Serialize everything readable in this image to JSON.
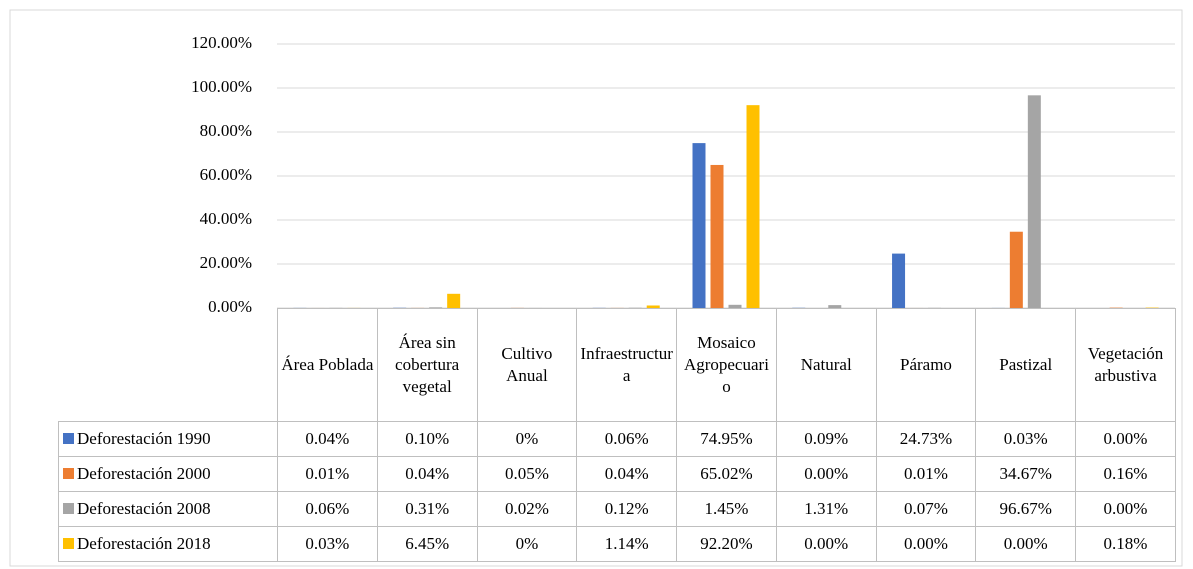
{
  "chart_data": {
    "type": "bar",
    "categories": [
      "Área Poblada",
      "Área sin cobertura vegetal",
      "Cultivo Anual",
      "Infraestructura",
      "Mosaico Agropecuario",
      "Natural",
      "Páramo",
      "Pastizal",
      "Vegetación arbustiva"
    ],
    "series": [
      {
        "name": "Deforestación 1990",
        "color": "#4472c4",
        "values": [
          0.04,
          0.1,
          0,
          0.06,
          74.95,
          0.09,
          24.73,
          0.03,
          0.0
        ],
        "value_labels": [
          "0.04%",
          "0.10%",
          "0%",
          "0.06%",
          "74.95%",
          "0.09%",
          "24.73%",
          "0.03%",
          "0.00%"
        ]
      },
      {
        "name": "Deforestación 2000",
        "color": "#ed7d31",
        "values": [
          0.01,
          0.04,
          0.05,
          0.04,
          65.02,
          0.0,
          0.01,
          34.67,
          0.16
        ],
        "value_labels": [
          "0.01%",
          "0.04%",
          "0.05%",
          "0.04%",
          "65.02%",
          "0.00%",
          "0.01%",
          "34.67%",
          "0.16%"
        ]
      },
      {
        "name": "Deforestación 2008",
        "color": "#a5a5a5",
        "values": [
          0.06,
          0.31,
          0.02,
          0.12,
          1.45,
          1.31,
          0.07,
          96.67,
          0.0
        ],
        "value_labels": [
          "0.06%",
          "0.31%",
          "0.02%",
          "0.12%",
          "1.45%",
          "1.31%",
          "0.07%",
          "96.67%",
          "0.00%"
        ]
      },
      {
        "name": "Deforestación 2018",
        "color": "#ffc000",
        "values": [
          0.03,
          6.45,
          0,
          1.14,
          92.2,
          0.0,
          0.0,
          0.0,
          0.18
        ],
        "value_labels": [
          "0.03%",
          "6.45%",
          "0%",
          "1.14%",
          "92.20%",
          "0.00%",
          "0.00%",
          "0.00%",
          "0.18%"
        ]
      }
    ],
    "ylim": [
      0,
      120
    ],
    "yticks": [
      {
        "value": 0,
        "label": "0.00%"
      },
      {
        "value": 20,
        "label": "20.00%"
      },
      {
        "value": 40,
        "label": "40.00%"
      },
      {
        "value": 60,
        "label": "60.00%"
      },
      {
        "value": 80,
        "label": "80.00%"
      },
      {
        "value": 100,
        "label": "100.00%"
      },
      {
        "value": 120,
        "label": "120.00%"
      }
    ],
    "grid": true
  }
}
